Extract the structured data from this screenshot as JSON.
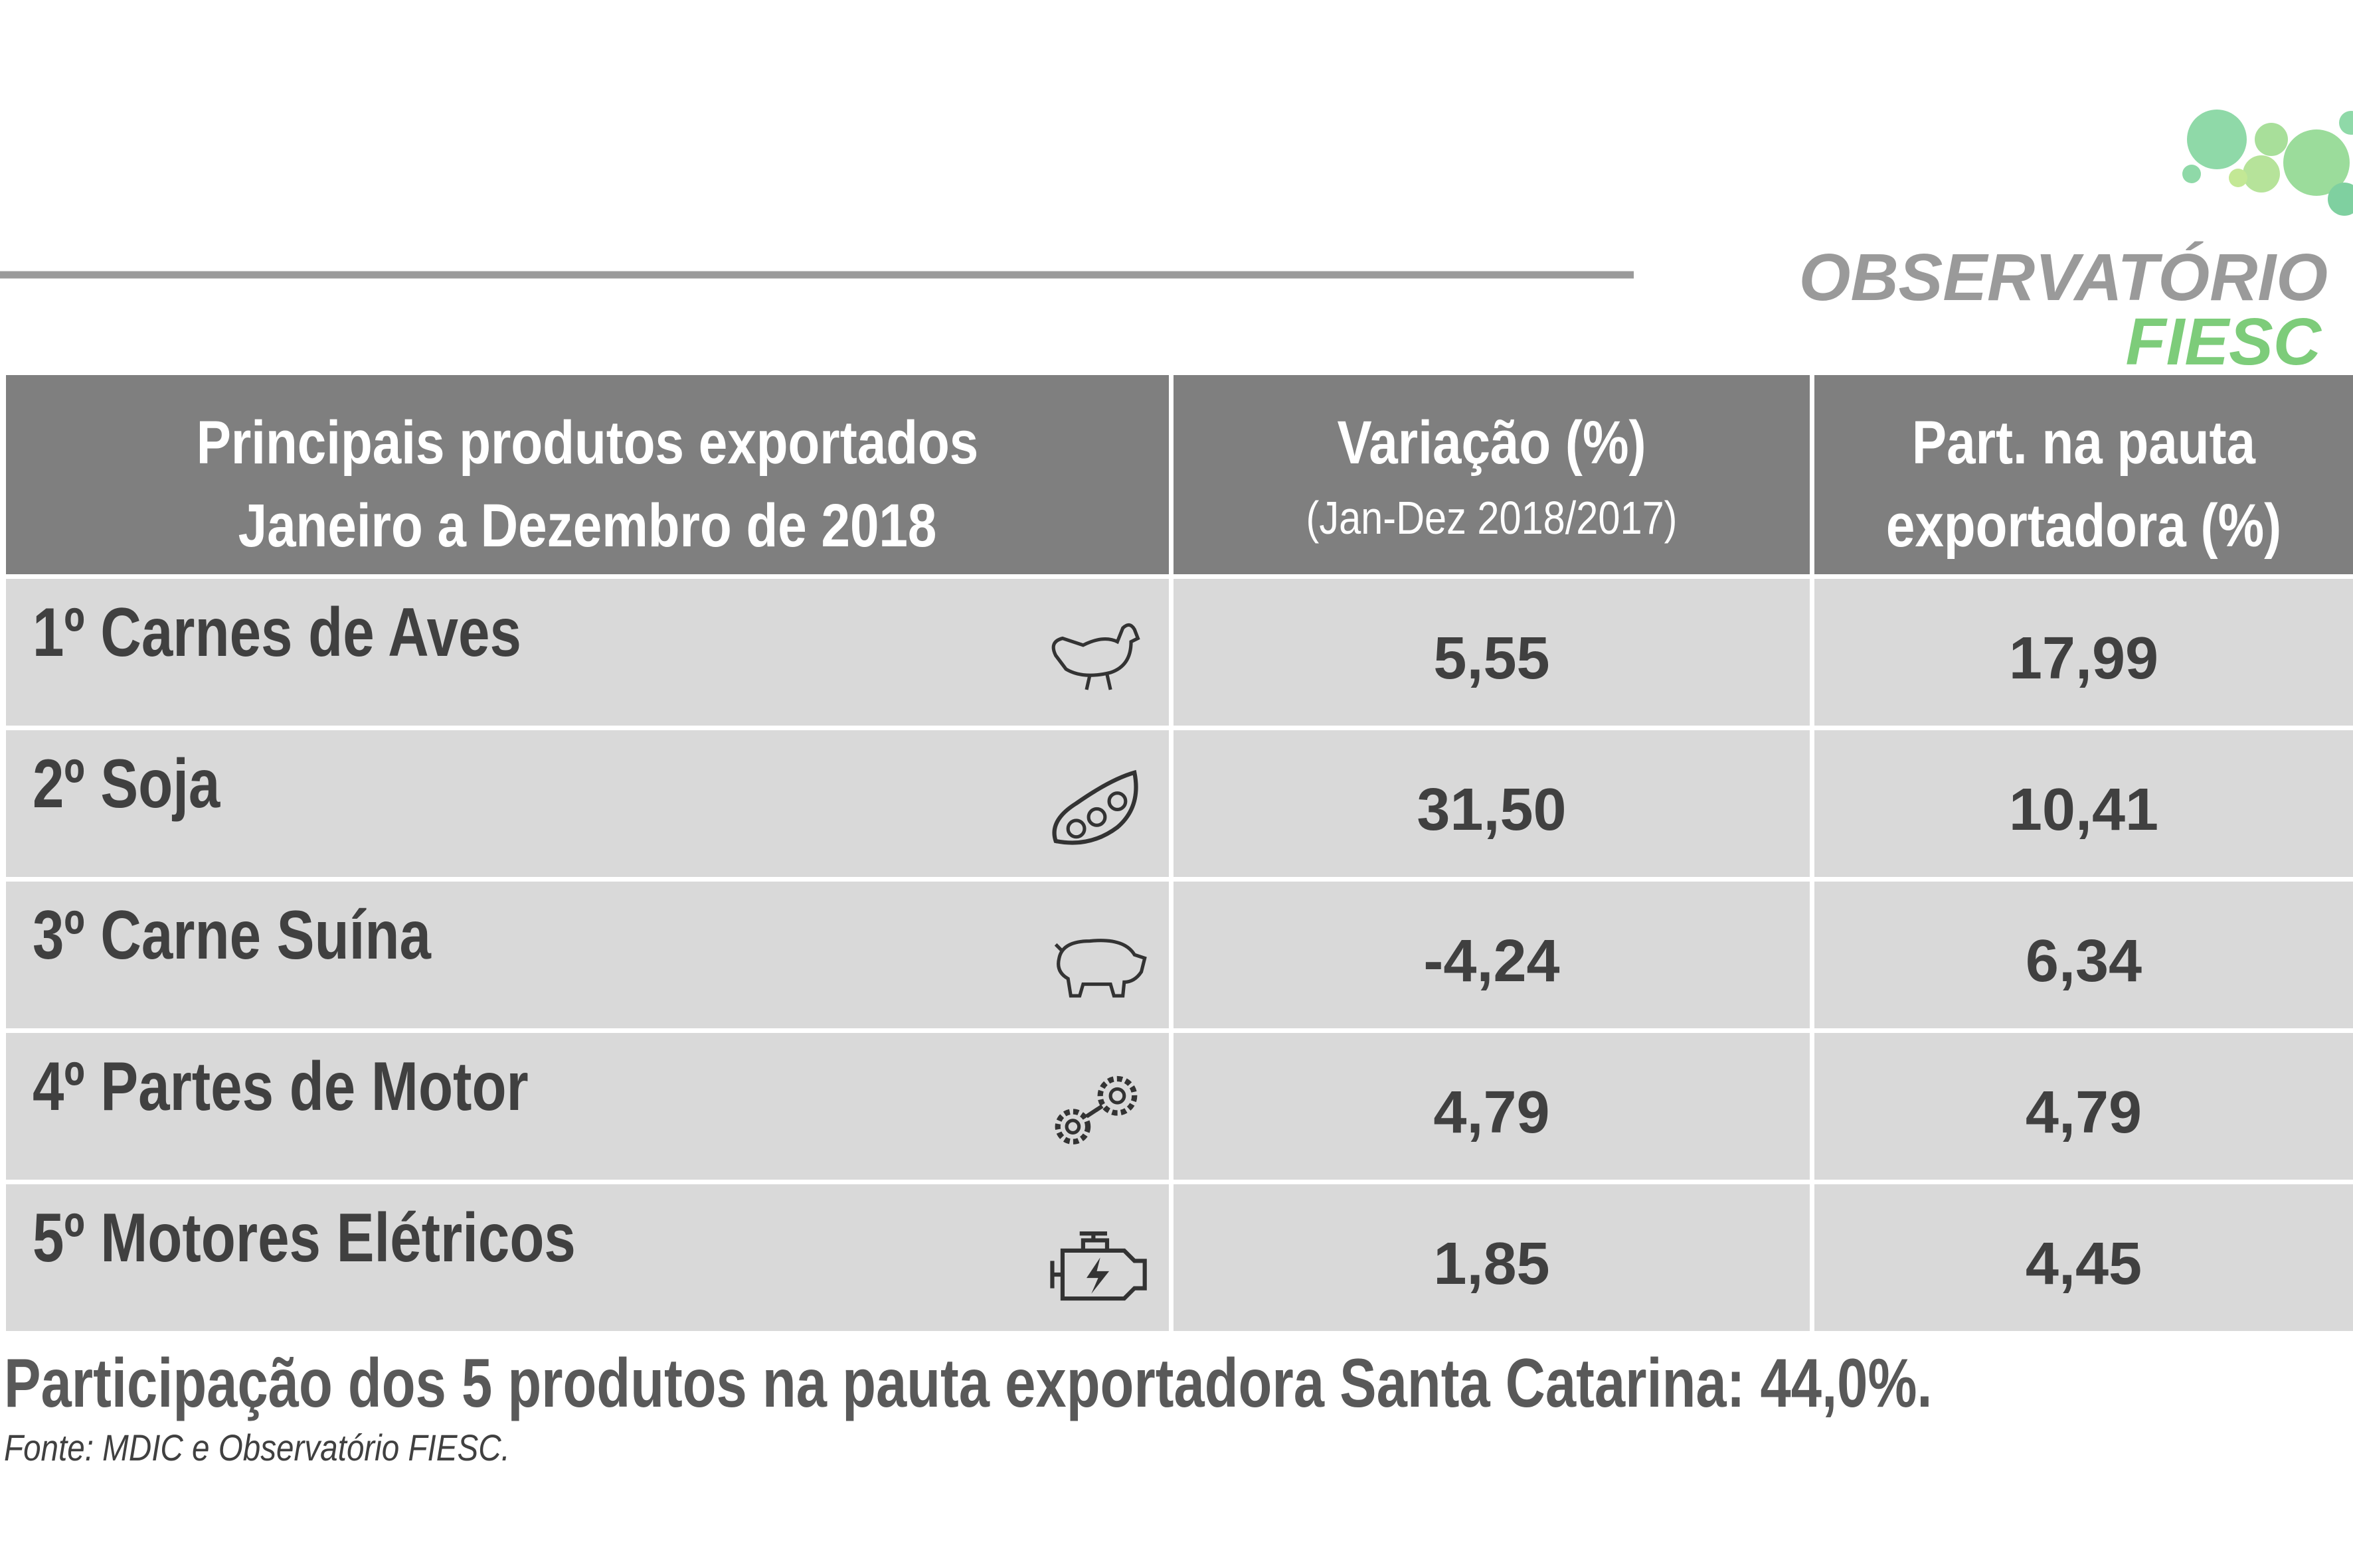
{
  "logo": {
    "line1": "OBSERVATÓRIO",
    "line2": "FIESC"
  },
  "table": {
    "header": [
      {
        "line1": "Principais produtos exportados",
        "line2": "Janeiro a Dezembro de 2018"
      },
      {
        "line1": "Variação (%)",
        "line2": "(Jan-Dez 2018/2017)"
      },
      {
        "line1": "Part. na pauta",
        "line2": "exportadora (%)"
      }
    ],
    "rows": [
      [
        "1º Carnes de Aves",
        "5,55",
        "17,99"
      ],
      [
        "2º Soja",
        "31,50",
        "10,41"
      ],
      [
        "3º Carne Suína",
        "-4,24",
        "6,34"
      ],
      [
        "4º Partes de Motor",
        "4,79",
        "4,79"
      ],
      [
        "5º Motores Elétricos",
        "1,85",
        "4,45"
      ]
    ]
  },
  "footer": {
    "summary": "Participação dos 5 produtos na pauta exportadora Santa Catarina: 44,0%.",
    "source": "Fonte: MDIC e Observatório FIESC."
  }
}
